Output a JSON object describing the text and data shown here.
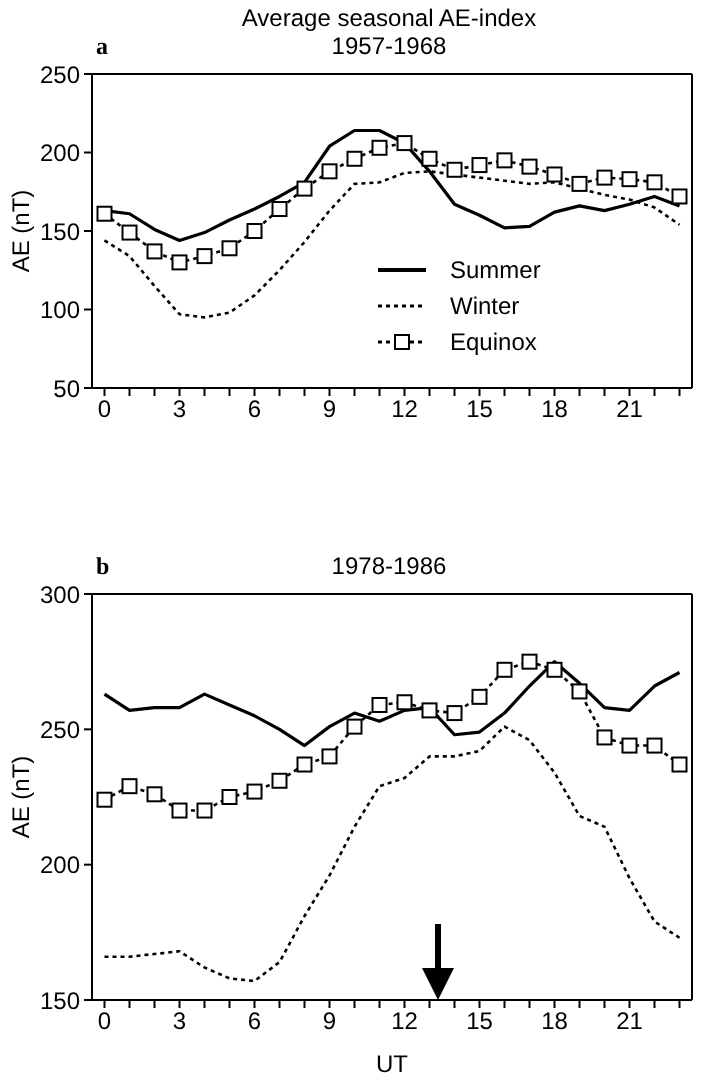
{
  "chart_data": [
    {
      "type": "line",
      "title": "Average seasonal AE-index",
      "subtitle": "1957-1968",
      "ylabel": "AE (nT)",
      "annotations": [
        "a"
      ],
      "x": [
        0,
        1,
        2,
        3,
        4,
        5,
        6,
        7,
        8,
        9,
        10,
        11,
        12,
        13,
        14,
        15,
        16,
        17,
        18,
        19,
        20,
        21,
        22,
        23
      ],
      "xlim": [
        -0.5,
        23.5
      ],
      "xticks": [
        0,
        {
          "value": 1,
          "label": null
        },
        {
          "value": 2,
          "label": null
        },
        3,
        {
          "value": 4,
          "label": null
        },
        {
          "value": 5,
          "label": null
        },
        6,
        {
          "value": 7,
          "label": null
        },
        {
          "value": 8,
          "label": null
        },
        9,
        {
          "value": 10,
          "label": null
        },
        {
          "value": 11,
          "label": null
        },
        12,
        {
          "value": 13,
          "label": null
        },
        {
          "value": 14,
          "label": null
        },
        15,
        {
          "value": 16,
          "label": null
        },
        {
          "value": 17,
          "label": null
        },
        18,
        {
          "value": 19,
          "label": null
        },
        {
          "value": 20,
          "label": null
        },
        21,
        {
          "value": 22,
          "label": null
        },
        {
          "value": 23,
          "label": null
        }
      ],
      "ylim": [
        50,
        250
      ],
      "yticks": [
        50,
        100,
        150,
        200,
        250
      ],
      "legend": "right",
      "grid": false,
      "series": [
        {
          "name": "Summer",
          "color": "#000000",
          "line_style": "solid",
          "marker": "none",
          "values": [
            163,
            161,
            151,
            144,
            149,
            157,
            164,
            172,
            181,
            204,
            214,
            214,
            206,
            188,
            167,
            160,
            152,
            153,
            162,
            166,
            163,
            167,
            172,
            166
          ]
        },
        {
          "name": "Winter",
          "color": "#000000",
          "line_style": "dotted",
          "marker": "none",
          "values": [
            144,
            134,
            115,
            97,
            95,
            98,
            109,
            125,
            143,
            163,
            180,
            181,
            187,
            188,
            186,
            184,
            182,
            180,
            181,
            177,
            173,
            170,
            165,
            154
          ]
        },
        {
          "name": "Equinox",
          "color": "#000000",
          "line_style": "dotted",
          "marker": "square",
          "values": [
            161,
            149,
            137,
            130,
            134,
            139,
            150,
            164,
            177,
            188,
            196,
            203,
            206,
            196,
            189,
            192,
            195,
            191,
            186,
            180,
            184,
            183,
            181,
            172
          ]
        }
      ]
    },
    {
      "type": "line",
      "title": "1978-1986",
      "xlabel": "UT",
      "ylabel": "AE (nT)",
      "annotations": [
        "b"
      ],
      "x": [
        0,
        1,
        2,
        3,
        4,
        5,
        6,
        7,
        8,
        9,
        10,
        11,
        12,
        13,
        14,
        15,
        16,
        17,
        18,
        19,
        20,
        21,
        22,
        23
      ],
      "xlim": [
        -0.5,
        23.5
      ],
      "xticks": [
        0,
        {
          "value": 1,
          "label": null
        },
        {
          "value": 2,
          "label": null
        },
        3,
        {
          "value": 4,
          "label": null
        },
        {
          "value": 5,
          "label": null
        },
        6,
        {
          "value": 7,
          "label": null
        },
        {
          "value": 8,
          "label": null
        },
        9,
        {
          "value": 10,
          "label": null
        },
        {
          "value": 11,
          "label": null
        },
        12,
        {
          "value": 13,
          "label": null
        },
        {
          "value": 14,
          "label": null
        },
        15,
        {
          "value": 16,
          "label": null
        },
        {
          "value": 17,
          "label": null
        },
        18,
        {
          "value": 19,
          "label": null
        },
        {
          "value": 20,
          "label": null
        },
        21,
        {
          "value": 22,
          "label": null
        },
        {
          "value": 23,
          "label": null
        }
      ],
      "ylim": [
        150,
        300
      ],
      "yticks": [
        150,
        200,
        250,
        300
      ],
      "legend": false,
      "grid": false,
      "series": [
        {
          "color": "#000000",
          "line_style": "solid",
          "marker": "none",
          "values": [
            263,
            257,
            258,
            258,
            263,
            259,
            255,
            250,
            244,
            251,
            256,
            253,
            257,
            258,
            248,
            249,
            256,
            266,
            275,
            267,
            258,
            257,
            266,
            271
          ]
        },
        {
          "color": "#000000",
          "line_style": "dotted",
          "marker": "none",
          "values": [
            166,
            166,
            167,
            168,
            162,
            158,
            157,
            164,
            181,
            196,
            214,
            229,
            232,
            240,
            240,
            242,
            251,
            246,
            234,
            218,
            214,
            195,
            179,
            173
          ]
        },
        {
          "color": "#000000",
          "line_style": "dotted",
          "marker": "square",
          "values": [
            224,
            229,
            226,
            220,
            220,
            225,
            227,
            231,
            237,
            240,
            251,
            259,
            260,
            257,
            256,
            262,
            272,
            275,
            272,
            264,
            247,
            244,
            244,
            237
          ]
        }
      ]
    }
  ]
}
